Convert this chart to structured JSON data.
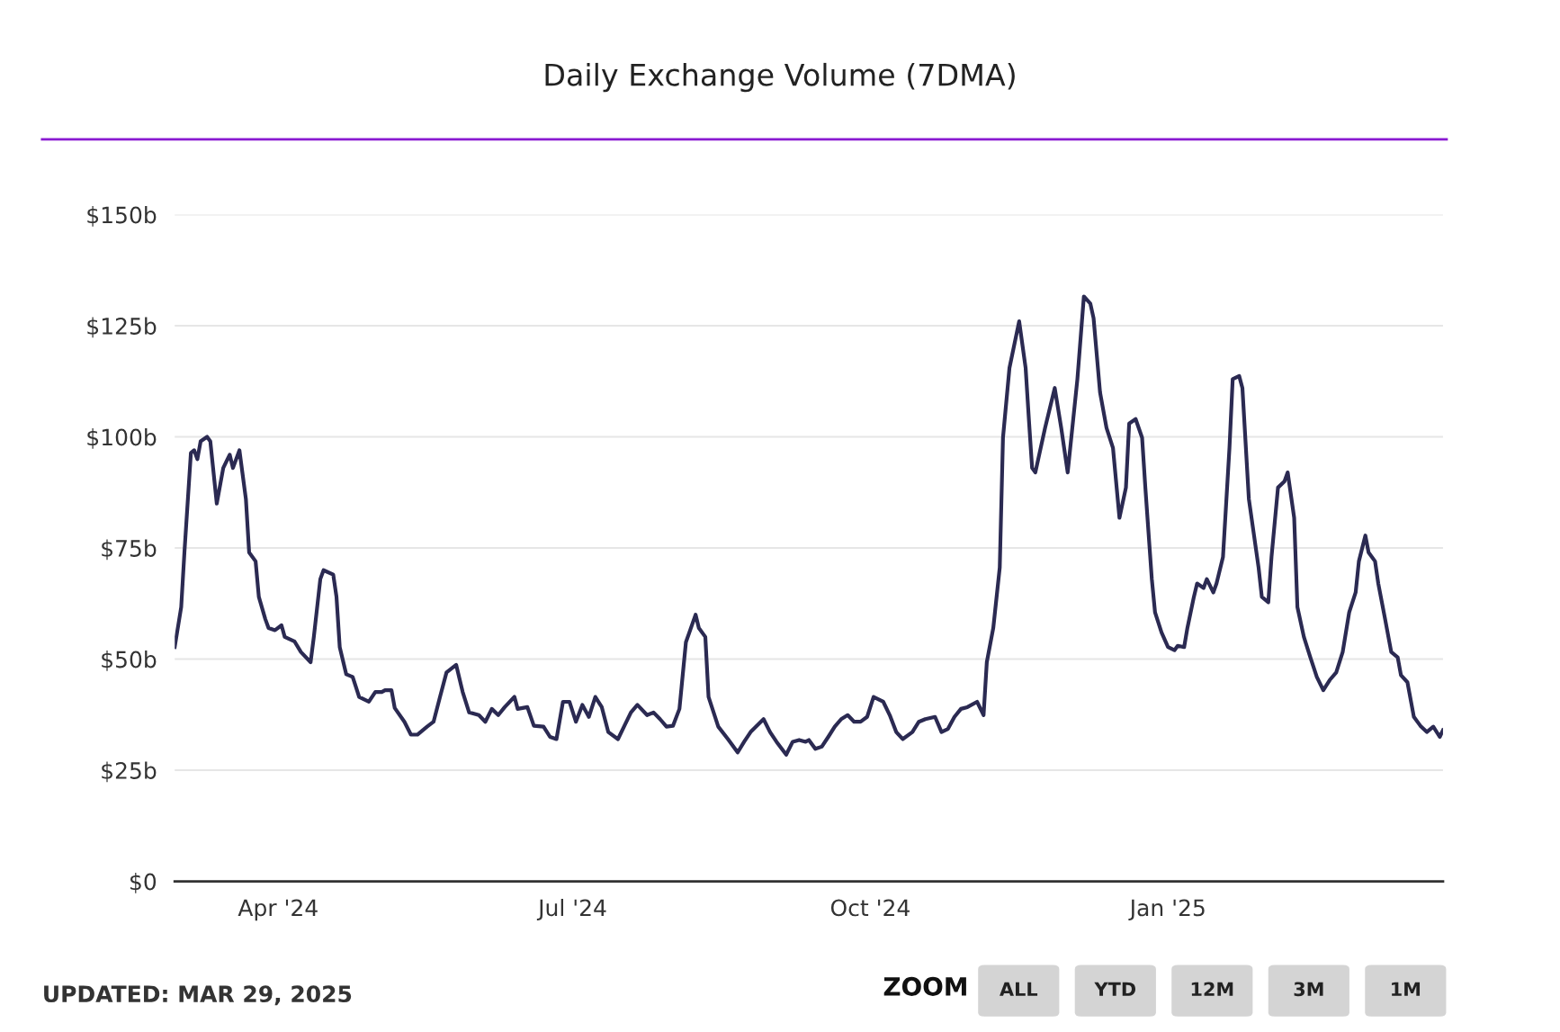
{
  "chart_data": {
    "type": "line",
    "title": "Daily Exchange Volume (7DMA)",
    "x": [
      "2024-02-29",
      "2024-03-02",
      "2024-03-03",
      "2024-03-05",
      "2024-03-06",
      "2024-03-07",
      "2024-03-08",
      "2024-03-10",
      "2024-03-11",
      "2024-03-13",
      "2024-03-15",
      "2024-03-17",
      "2024-03-18",
      "2024-03-20",
      "2024-03-22",
      "2024-03-23",
      "2024-03-25",
      "2024-03-26",
      "2024-03-28",
      "2024-03-29",
      "2024-03-31",
      "2024-04-02",
      "2024-04-03",
      "2024-04-06",
      "2024-04-08",
      "2024-04-11",
      "2024-04-12",
      "2024-04-14",
      "2024-04-15",
      "2024-04-18",
      "2024-04-19",
      "2024-04-20",
      "2024-04-22",
      "2024-04-24",
      "2024-04-26",
      "2024-04-29",
      "2024-05-01",
      "2024-05-03",
      "2024-05-04",
      "2024-05-06",
      "2024-05-07",
      "2024-05-10",
      "2024-05-12",
      "2024-05-14",
      "2024-05-17",
      "2024-05-19",
      "2024-05-21",
      "2024-05-23",
      "2024-05-26",
      "2024-05-28",
      "2024-05-30",
      "2024-06-02",
      "2024-06-04",
      "2024-06-06",
      "2024-06-08",
      "2024-06-10",
      "2024-06-13",
      "2024-06-14",
      "2024-06-17",
      "2024-06-19",
      "2024-06-22",
      "2024-06-24",
      "2024-06-26",
      "2024-06-28",
      "2024-06-30",
      "2024-07-02",
      "2024-07-04",
      "2024-07-06",
      "2024-07-08",
      "2024-07-10",
      "2024-07-12",
      "2024-07-15",
      "2024-07-17",
      "2024-07-19",
      "2024-07-21",
      "2024-07-24",
      "2024-07-26",
      "2024-07-28",
      "2024-07-30",
      "2024-08-01",
      "2024-08-03",
      "2024-08-05",
      "2024-08-08",
      "2024-08-09",
      "2024-08-11",
      "2024-08-12",
      "2024-08-15",
      "2024-08-18",
      "2024-08-21",
      "2024-08-23",
      "2024-08-25",
      "2024-08-29",
      "2024-08-31",
      "2024-09-02",
      "2024-09-05",
      "2024-09-07",
      "2024-09-09",
      "2024-09-11",
      "2024-09-12",
      "2024-09-14",
      "2024-09-16",
      "2024-09-18",
      "2024-09-20",
      "2024-09-22",
      "2024-09-24",
      "2024-09-26",
      "2024-09-28",
      "2024-09-30",
      "2024-10-02",
      "2024-10-05",
      "2024-10-07",
      "2024-10-09",
      "2024-10-11",
      "2024-10-14",
      "2024-10-16",
      "2024-10-18",
      "2024-10-21",
      "2024-10-23",
      "2024-10-25",
      "2024-10-27",
      "2024-10-29",
      "2024-10-31",
      "2024-11-03",
      "2024-11-05",
      "2024-11-06",
      "2024-11-08",
      "2024-11-10",
      "2024-11-11",
      "2024-11-13",
      "2024-11-16",
      "2024-11-18",
      "2024-11-19",
      "2024-11-20",
      "2024-11-21",
      "2024-11-24",
      "2024-11-27",
      "2024-11-29",
      "2024-12-01",
      "2024-12-04",
      "2024-12-06",
      "2024-12-08",
      "2024-12-09",
      "2024-12-11",
      "2024-12-13",
      "2024-12-15",
      "2024-12-17",
      "2024-12-19",
      "2024-12-20",
      "2024-12-22",
      "2024-12-24",
      "2024-12-25",
      "2024-12-27",
      "2024-12-28",
      "2024-12-30",
      "2025-01-01",
      "2025-01-03",
      "2025-01-04",
      "2025-01-06",
      "2025-01-07",
      "2025-01-09",
      "2025-01-10",
      "2025-01-12",
      "2025-01-13",
      "2025-01-15",
      "2025-01-16",
      "2025-01-18",
      "2025-01-20",
      "2025-01-21",
      "2025-01-23",
      "2025-01-24",
      "2025-01-26",
      "2025-01-29",
      "2025-01-30",
      "2025-02-01",
      "2025-02-02",
      "2025-02-04",
      "2025-02-06",
      "2025-02-07",
      "2025-02-09",
      "2025-02-10",
      "2025-02-12",
      "2025-02-14",
      "2025-02-16",
      "2025-02-18",
      "2025-02-20",
      "2025-02-22",
      "2025-02-24",
      "2025-02-26",
      "2025-02-28",
      "2025-03-01",
      "2025-03-03",
      "2025-03-04",
      "2025-03-06",
      "2025-03-07",
      "2025-03-09",
      "2025-03-11",
      "2025-03-13",
      "2025-03-14",
      "2025-03-16",
      "2025-03-18",
      "2025-03-20",
      "2025-03-22",
      "2025-03-24",
      "2025-03-26",
      "2025-03-27"
    ],
    "series": [
      {
        "color": "#2b2a52",
        "values": [
          52.7,
          61.7,
          74,
          96.4,
          97,
          95,
          99,
          100,
          99,
          85,
          93,
          96,
          93,
          97,
          86,
          74,
          72,
          64,
          59,
          57,
          56.5,
          57.6,
          55,
          54,
          51.6,
          49.3,
          55,
          68,
          70,
          69,
          64,
          52.7,
          46.6,
          46,
          41.5,
          40.4,
          42.6,
          42.6,
          43,
          43,
          39,
          35.9,
          33,
          33,
          34.8,
          35.9,
          41.5,
          47,
          48.7,
          42.6,
          38,
          37.4,
          35.9,
          38.8,
          37.4,
          39.2,
          41.5,
          38.8,
          39.2,
          35,
          34.8,
          32.5,
          32,
          40.4,
          40.4,
          35.9,
          39.7,
          37,
          41.5,
          39.2,
          33.6,
          32,
          35,
          38,
          39.7,
          37.4,
          38,
          36.5,
          34.8,
          35,
          38.8,
          53.8,
          60,
          57,
          55,
          41.5,
          34.8,
          32,
          29,
          31.4,
          33.6,
          36.5,
          33.6,
          31.4,
          28.5,
          31.4,
          31.8,
          31.4,
          31.8,
          29.8,
          30.3,
          32.5,
          34.8,
          36.5,
          37.4,
          35.9,
          35.9,
          37,
          41.5,
          40.4,
          37.4,
          33.6,
          32,
          33.6,
          35.9,
          36.5,
          37,
          33.6,
          34.3,
          37,
          38.8,
          39.2,
          40.4,
          37.4,
          49.3,
          57,
          70.6,
          99.8,
          115.5,
          126,
          115.5,
          104,
          93,
          92,
          102,
          111,
          102,
          92,
          113,
          131.6,
          130,
          126.7,
          110,
          102,
          97.5,
          81.8,
          88.6,
          103,
          104,
          99.8,
          88.6,
          68,
          60.5,
          56,
          52.7,
          52,
          53,
          52.7,
          57,
          64,
          67,
          66,
          68,
          65,
          67,
          73,
          97.5,
          113,
          113.7,
          111,
          86,
          70.6,
          64,
          62.8,
          73,
          88.6,
          90,
          92,
          81.8,
          61.7,
          55,
          50.4,
          46,
          43,
          45.3,
          47,
          51.6,
          60.5,
          65,
          72,
          77.8,
          74,
          72,
          67,
          59.4,
          51.6,
          50.4,
          46.4,
          44.8,
          37,
          35,
          33.6,
          34.8,
          32.5,
          34
        ]
      }
    ],
    "xlim": [
      "2024-02-29",
      "2025-03-27"
    ],
    "xticks": [
      {
        "value": "2024-04-01",
        "label": "Apr '24"
      },
      {
        "value": "2024-07-01",
        "label": "Jul '24"
      },
      {
        "value": "2024-10-01",
        "label": "Oct '24"
      },
      {
        "value": "2025-01-01",
        "label": "Jan '25"
      }
    ],
    "ylim": [
      0,
      150
    ],
    "yticks": [
      {
        "value": 0,
        "label": "$0"
      },
      {
        "value": 25,
        "label": "$25b"
      },
      {
        "value": 50,
        "label": "$50b"
      },
      {
        "value": 75,
        "label": "$75b"
      },
      {
        "value": 100,
        "label": "$100b"
      },
      {
        "value": 125,
        "label": "$125b"
      },
      {
        "value": 150,
        "label": "$150b"
      }
    ],
    "grid": "y",
    "marker": "none",
    "line_style": "solid",
    "annotations": [
      "UPDATED: MAR 29, 2025",
      "ZOOM",
      "ALL",
      "YTD",
      "12M",
      "3M",
      "1M"
    ]
  }
}
